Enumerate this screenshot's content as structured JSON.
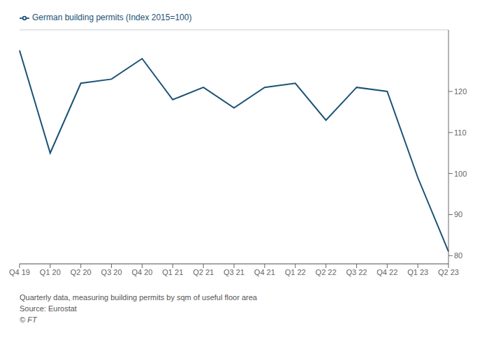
{
  "chart_data": {
    "type": "line",
    "categories": [
      "Q4 19",
      "Q1 20",
      "Q2 20",
      "Q3 20",
      "Q4 20",
      "Q1 21",
      "Q2 21",
      "Q3 21",
      "Q4 21",
      "Q1 22",
      "Q2 22",
      "Q3 22",
      "Q4 22",
      "Q1 23",
      "Q2 23"
    ],
    "series": [
      {
        "name": "German building permits (Index 2015=100)",
        "color": "#1a5276",
        "values": [
          130,
          105,
          122,
          123,
          128,
          118,
          121,
          116,
          121,
          122,
          113,
          121,
          120,
          99,
          81
        ]
      }
    ],
    "ylim": [
      78,
      135
    ],
    "yticks": [
      80,
      90,
      100,
      110,
      120
    ],
    "grid": true,
    "legend": "upper left",
    "annotations": [
      "Quarterly data, measuring building permits by sqm of useful floor area",
      "Source: Eurostat",
      "© FT"
    ]
  }
}
